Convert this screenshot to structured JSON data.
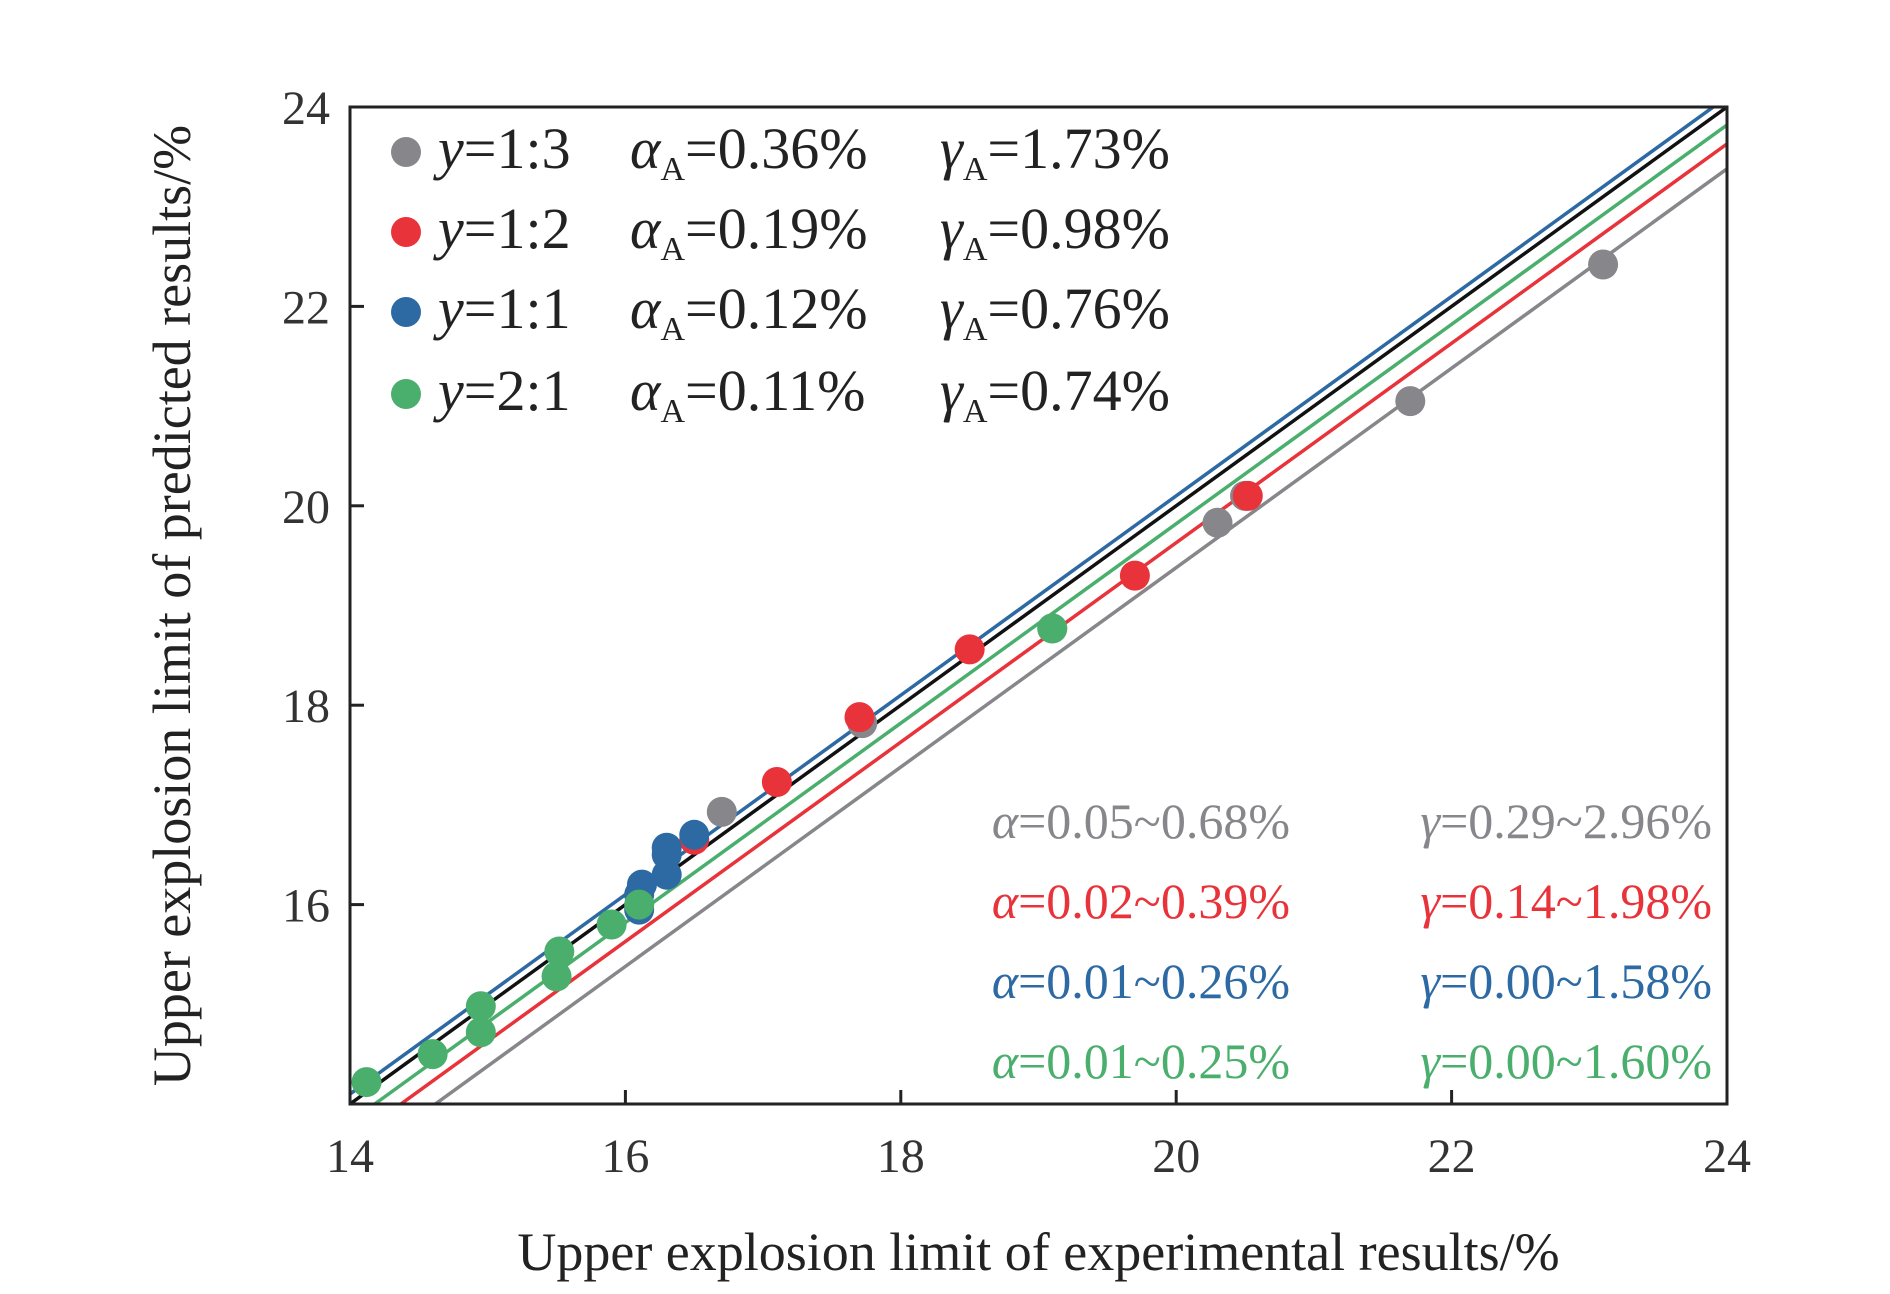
{
  "chart_data": {
    "type": "scatter",
    "xlabel": "Upper explosion limit of experimental results/%",
    "ylabel": "Upper explosion limit of predicted results/%",
    "xlim": [
      14,
      24
    ],
    "ylim": [
      14,
      24
    ],
    "xticks": [
      "14",
      "16",
      "18",
      "20",
      "22",
      "24"
    ],
    "yticks": [
      "16",
      "18",
      "20",
      "22",
      "24"
    ],
    "grid": false,
    "reference_line": {
      "slope": 1,
      "intercept": 0,
      "color": "#111111"
    },
    "series": [
      {
        "name": "y=1:3",
        "color": "#87878b",
        "alpha_A": "0.36%",
        "gamma_A": "1.73%",
        "alpha_range": "0.05~0.68%",
        "gamma_range": "0.29~2.96%",
        "fit_line": {
          "slope": 1,
          "intercept": -0.62
        },
        "points": [
          [
            16.7,
            16.93
          ],
          [
            17.72,
            17.82
          ],
          [
            19.1,
            18.77
          ],
          [
            20.3,
            19.83
          ],
          [
            20.5,
            20.1
          ],
          [
            21.7,
            21.05
          ],
          [
            23.1,
            22.42
          ]
        ]
      },
      {
        "name": "y=1:2",
        "color": "#e8333a",
        "alpha_A": "0.19%",
        "gamma_A": "0.98%",
        "alpha_range": "0.02~0.39%",
        "gamma_range": "0.14~1.98%",
        "fit_line": {
          "slope": 1,
          "intercept": -0.37
        },
        "points": [
          [
            16.5,
            16.65
          ],
          [
            17.1,
            17.23
          ],
          [
            17.7,
            17.88
          ],
          [
            18.5,
            18.56
          ],
          [
            19.7,
            19.3
          ],
          [
            20.52,
            20.1
          ]
        ]
      },
      {
        "name": "y=1:1",
        "color": "#2d6aa3",
        "alpha_A": "0.12%",
        "gamma_A": "0.76%",
        "alpha_range": "0.01~0.26%",
        "gamma_range": "0.00~1.58%",
        "fit_line": {
          "slope": 1,
          "intercept": 0.1
        },
        "points": [
          [
            16.1,
            15.95
          ],
          [
            16.1,
            16.1
          ],
          [
            16.12,
            16.2
          ],
          [
            16.3,
            16.3
          ],
          [
            16.3,
            16.5
          ],
          [
            16.3,
            16.57
          ],
          [
            16.5,
            16.7
          ]
        ]
      },
      {
        "name": "y=2:1",
        "color": "#4aae6d",
        "alpha_A": "0.11%",
        "gamma_A": "0.74%",
        "alpha_range": "0.01~0.25%",
        "gamma_range": "0.00~1.60%",
        "fit_line": {
          "slope": 1,
          "intercept": -0.18
        },
        "points": [
          [
            14.12,
            14.22
          ],
          [
            14.6,
            14.5
          ],
          [
            14.95,
            14.72
          ],
          [
            14.95,
            14.98
          ],
          [
            15.5,
            15.28
          ],
          [
            15.52,
            15.53
          ],
          [
            15.9,
            15.8
          ],
          [
            16.1,
            16.0
          ],
          [
            19.1,
            18.77
          ]
        ]
      }
    ]
  }
}
